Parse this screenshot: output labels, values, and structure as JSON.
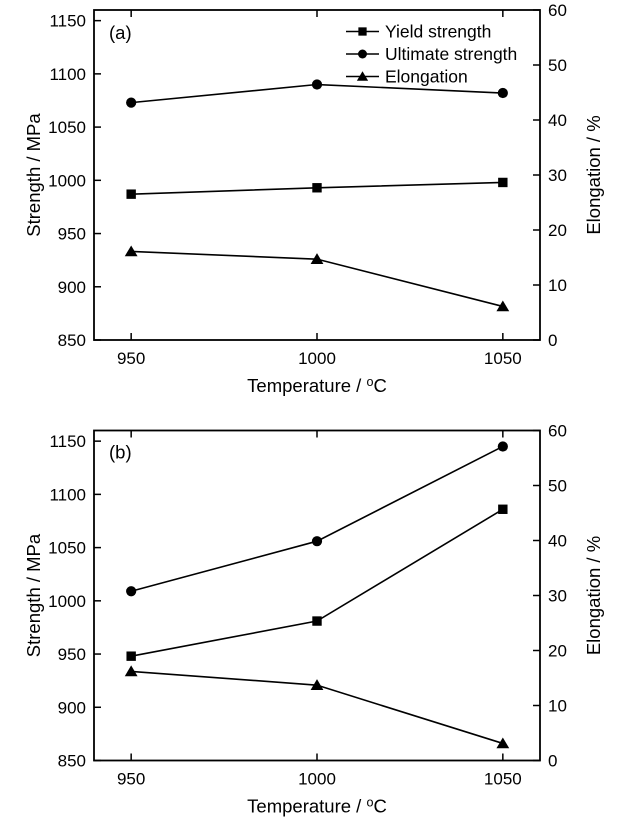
{
  "page": {
    "background": "#ffffff",
    "line_color": "#000000",
    "text_color": "#000000"
  },
  "chart_data": [
    {
      "type": "line",
      "panel_label": "(a)",
      "xlabel": "Temperature / °C",
      "ylabel_left": "Strength / MPa",
      "ylabel_right": "Elongation / %",
      "x": [
        950,
        1000,
        1050
      ],
      "xticks": [
        950,
        1000,
        1050
      ],
      "yticks_left": [
        850,
        900,
        950,
        1000,
        1050,
        1100,
        1150
      ],
      "yticks_right": [
        0,
        10,
        20,
        30,
        40,
        50,
        60
      ],
      "xlim": [
        940,
        1060
      ],
      "ylim_left": [
        850,
        1160
      ],
      "ylim_right": [
        0,
        60
      ],
      "grid": false,
      "legend_visible": true,
      "legend_position": "top-right",
      "series": [
        {
          "name": "Yield strength",
          "marker": "square",
          "axis": "left",
          "values": [
            987,
            993,
            998
          ]
        },
        {
          "name": "Ultimate strength",
          "marker": "circle",
          "axis": "left",
          "values": [
            1073,
            1090,
            1082
          ]
        },
        {
          "name": "Elongation",
          "marker": "triangle",
          "axis": "right",
          "values": [
            16.1,
            14.7,
            6.1
          ]
        }
      ]
    },
    {
      "type": "line",
      "panel_label": "(b)",
      "xlabel": "Temperature / °C",
      "ylabel_left": "Strength / MPa",
      "ylabel_right": "Elongation / %",
      "x": [
        950,
        1000,
        1050
      ],
      "xticks": [
        950,
        1000,
        1050
      ],
      "yticks_left": [
        850,
        900,
        950,
        1000,
        1050,
        1100,
        1150
      ],
      "yticks_right": [
        0,
        10,
        20,
        30,
        40,
        50,
        60
      ],
      "xlim": [
        940,
        1060
      ],
      "ylim_left": [
        850,
        1160
      ],
      "ylim_right": [
        0,
        60
      ],
      "grid": false,
      "legend_visible": false,
      "legend_position": "none",
      "series": [
        {
          "name": "Yield strength",
          "marker": "square",
          "axis": "left",
          "values": [
            948,
            981,
            1086
          ]
        },
        {
          "name": "Ultimate strength",
          "marker": "circle",
          "axis": "left",
          "values": [
            1009,
            1056,
            1145
          ]
        },
        {
          "name": "Elongation",
          "marker": "triangle",
          "axis": "right",
          "values": [
            16.2,
            13.7,
            3.1
          ]
        }
      ]
    }
  ]
}
